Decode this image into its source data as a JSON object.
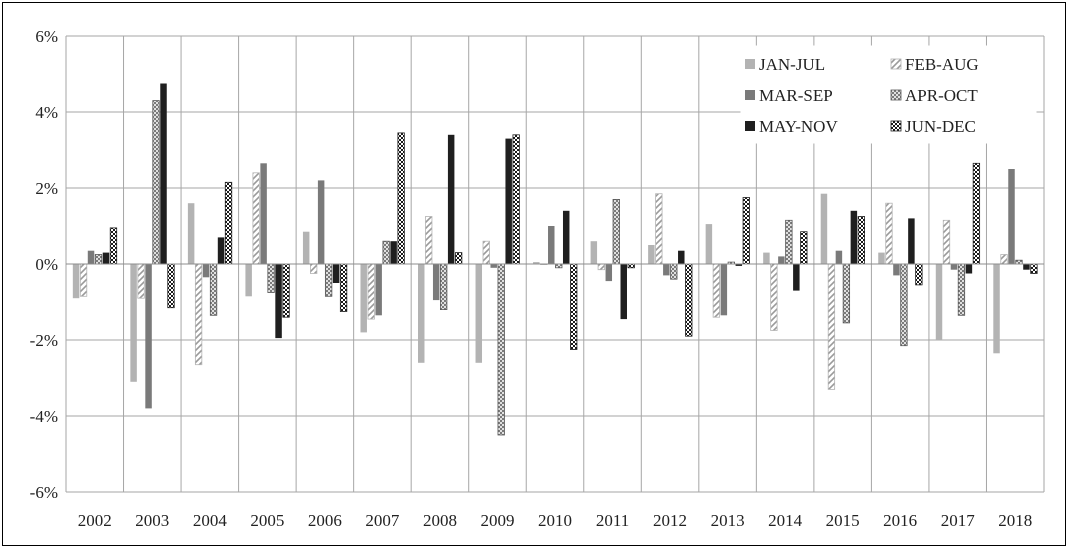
{
  "chart_data": {
    "type": "bar",
    "categories": [
      "2002",
      "2003",
      "2004",
      "2005",
      "2006",
      "2007",
      "2008",
      "2009",
      "2010",
      "2011",
      "2012",
      "2013",
      "2014",
      "2015",
      "2016",
      "2017",
      "2018"
    ],
    "y_ticks": [
      "6%",
      "4%",
      "2%",
      "0%",
      "-2%",
      "-4%",
      "-6%"
    ],
    "ylim": [
      -6,
      6
    ],
    "y_unit": "%",
    "grid": true,
    "legend_position": "top-right",
    "series": [
      {
        "name": "JAN-JUL",
        "pattern": "solid-light",
        "color": "#b3b3b3",
        "values": [
          -0.9,
          -3.1,
          1.6,
          -0.85,
          0.85,
          -1.8,
          -2.6,
          -2.6,
          0.05,
          0.6,
          0.5,
          1.05,
          0.3,
          1.85,
          0.3,
          -2.0,
          -2.35
        ]
      },
      {
        "name": "FEB-AUG",
        "pattern": "diagonal-hatch",
        "color": "#b3b3b3",
        "values": [
          -0.85,
          -0.9,
          -2.65,
          2.4,
          -0.25,
          -1.45,
          1.25,
          0.6,
          0.0,
          -0.15,
          1.85,
          -1.4,
          -1.75,
          -3.3,
          1.6,
          1.15,
          0.25
        ]
      },
      {
        "name": "MAR-SEP",
        "pattern": "solid-dark",
        "color": "#7a7a7a",
        "values": [
          0.35,
          -3.8,
          -0.35,
          2.65,
          2.2,
          -1.35,
          -0.95,
          -0.1,
          1.0,
          -0.45,
          -0.3,
          -1.35,
          0.2,
          0.35,
          -0.3,
          -0.15,
          2.5
        ]
      },
      {
        "name": "APR-OCT",
        "pattern": "vertical-hatch",
        "color": "#666666",
        "values": [
          0.25,
          4.3,
          -1.35,
          -0.75,
          -0.85,
          0.6,
          -1.2,
          -4.5,
          -0.1,
          1.7,
          -0.4,
          0.05,
          1.15,
          -1.55,
          -2.15,
          -1.35,
          0.1
        ]
      },
      {
        "name": "MAY-NOV",
        "pattern": "solid-black",
        "color": "#1f1f1f",
        "values": [
          0.3,
          4.75,
          0.7,
          -1.95,
          -0.5,
          0.6,
          3.4,
          3.3,
          1.4,
          -1.45,
          0.35,
          -0.05,
          -0.7,
          1.4,
          1.2,
          -0.25,
          -0.15
        ]
      },
      {
        "name": "JUN-DEC",
        "pattern": "checker",
        "color": "#1f1f1f",
        "values": [
          0.95,
          -1.15,
          2.15,
          -1.4,
          -1.25,
          3.45,
          0.3,
          3.4,
          -2.25,
          -0.1,
          -1.9,
          1.75,
          0.85,
          1.25,
          -0.55,
          2.65,
          -0.25
        ]
      }
    ]
  }
}
